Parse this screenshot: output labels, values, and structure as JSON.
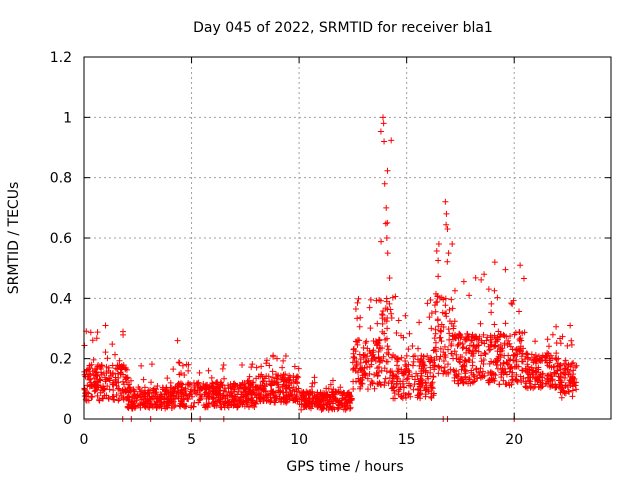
{
  "chart_data": {
    "type": "scatter",
    "title": "Day 045 of 2022, SRMTID for receiver bla1",
    "xlabel": "GPS time / hours",
    "ylabel": "SRMTID / TECUs",
    "xlim": [
      0,
      24.5
    ],
    "ylim": [
      0,
      1.2
    ],
    "xticks": [
      0,
      5,
      10,
      15,
      20
    ],
    "xtick_labels": [
      "0",
      "5",
      "10",
      "15",
      "20"
    ],
    "yticks": [
      0,
      0.2,
      0.4,
      0.6,
      0.8,
      1,
      1.2
    ],
    "ytick_labels": [
      "0",
      "0.2",
      "0.4",
      "0.6",
      "0.8",
      "1",
      "1.2"
    ],
    "grid": true,
    "marker": "+",
    "series": [
      {
        "name": "SRMTID",
        "color": "#ff0000",
        "segments": [
          {
            "x_start": 0.0,
            "x_end": 2.0,
            "base": 0.12,
            "spread": 0.1,
            "peak": 0.31
          },
          {
            "x_start": 2.0,
            "x_end": 4.3,
            "base": 0.07,
            "spread": 0.06,
            "peak": 0.19
          },
          {
            "x_start": 4.3,
            "x_end": 8.0,
            "base": 0.08,
            "spread": 0.07,
            "peak": 0.19
          },
          {
            "x_start": 8.0,
            "x_end": 10.0,
            "base": 0.1,
            "spread": 0.08,
            "peak": 0.22
          },
          {
            "x_start": 10.0,
            "x_end": 12.5,
            "base": 0.06,
            "spread": 0.05,
            "peak": 0.14
          },
          {
            "x_start": 12.5,
            "x_end": 13.8,
            "base": 0.18,
            "spread": 0.14,
            "peak": 0.41
          },
          {
            "x_start": 13.8,
            "x_end": 14.3,
            "base": 0.25,
            "spread": 0.25,
            "peak": 1.0
          },
          {
            "x_start": 14.3,
            "x_end": 16.3,
            "base": 0.14,
            "spread": 0.12,
            "peak": 0.41
          },
          {
            "x_start": 16.3,
            "x_end": 17.2,
            "base": 0.28,
            "spread": 0.22,
            "peak": 0.72
          },
          {
            "x_start": 17.2,
            "x_end": 19.0,
            "base": 0.2,
            "spread": 0.14,
            "peak": 0.48
          },
          {
            "x_start": 19.0,
            "x_end": 20.5,
            "base": 0.2,
            "spread": 0.15,
            "peak": 0.52
          },
          {
            "x_start": 20.5,
            "x_end": 22.0,
            "base": 0.16,
            "spread": 0.1,
            "peak": 0.31
          },
          {
            "x_start": 22.0,
            "x_end": 22.9,
            "base": 0.13,
            "spread": 0.1,
            "peak": 0.31
          }
        ],
        "peak_points": [
          {
            "x": 1.0,
            "y": 0.31
          },
          {
            "x": 4.35,
            "y": 0.26
          },
          {
            "x": 13.9,
            "y": 1.0
          },
          {
            "x": 13.93,
            "y": 0.98
          },
          {
            "x": 13.95,
            "y": 0.92
          },
          {
            "x": 13.98,
            "y": 0.78
          },
          {
            "x": 14.05,
            "y": 0.7
          },
          {
            "x": 14.1,
            "y": 0.65
          },
          {
            "x": 14.08,
            "y": 0.6
          },
          {
            "x": 14.12,
            "y": 0.55
          },
          {
            "x": 16.8,
            "y": 0.72
          },
          {
            "x": 16.85,
            "y": 0.68
          },
          {
            "x": 16.9,
            "y": 0.63
          },
          {
            "x": 16.5,
            "y": 0.58
          },
          {
            "x": 16.95,
            "y": 0.55
          },
          {
            "x": 18.6,
            "y": 0.48
          },
          {
            "x": 19.1,
            "y": 0.52
          },
          {
            "x": 22.6,
            "y": 0.31
          }
        ],
        "zero_points": [
          {
            "x": 1.8,
            "y": 0
          },
          {
            "x": 2.2,
            "y": 0
          },
          {
            "x": 3.1,
            "y": 0
          },
          {
            "x": 5.0,
            "y": 0
          },
          {
            "x": 5.4,
            "y": 0
          },
          {
            "x": 6.5,
            "y": 0
          },
          {
            "x": 16.7,
            "y": 0
          },
          {
            "x": 16.9,
            "y": 0
          },
          {
            "x": 20.0,
            "y": 0
          }
        ]
      }
    ]
  }
}
